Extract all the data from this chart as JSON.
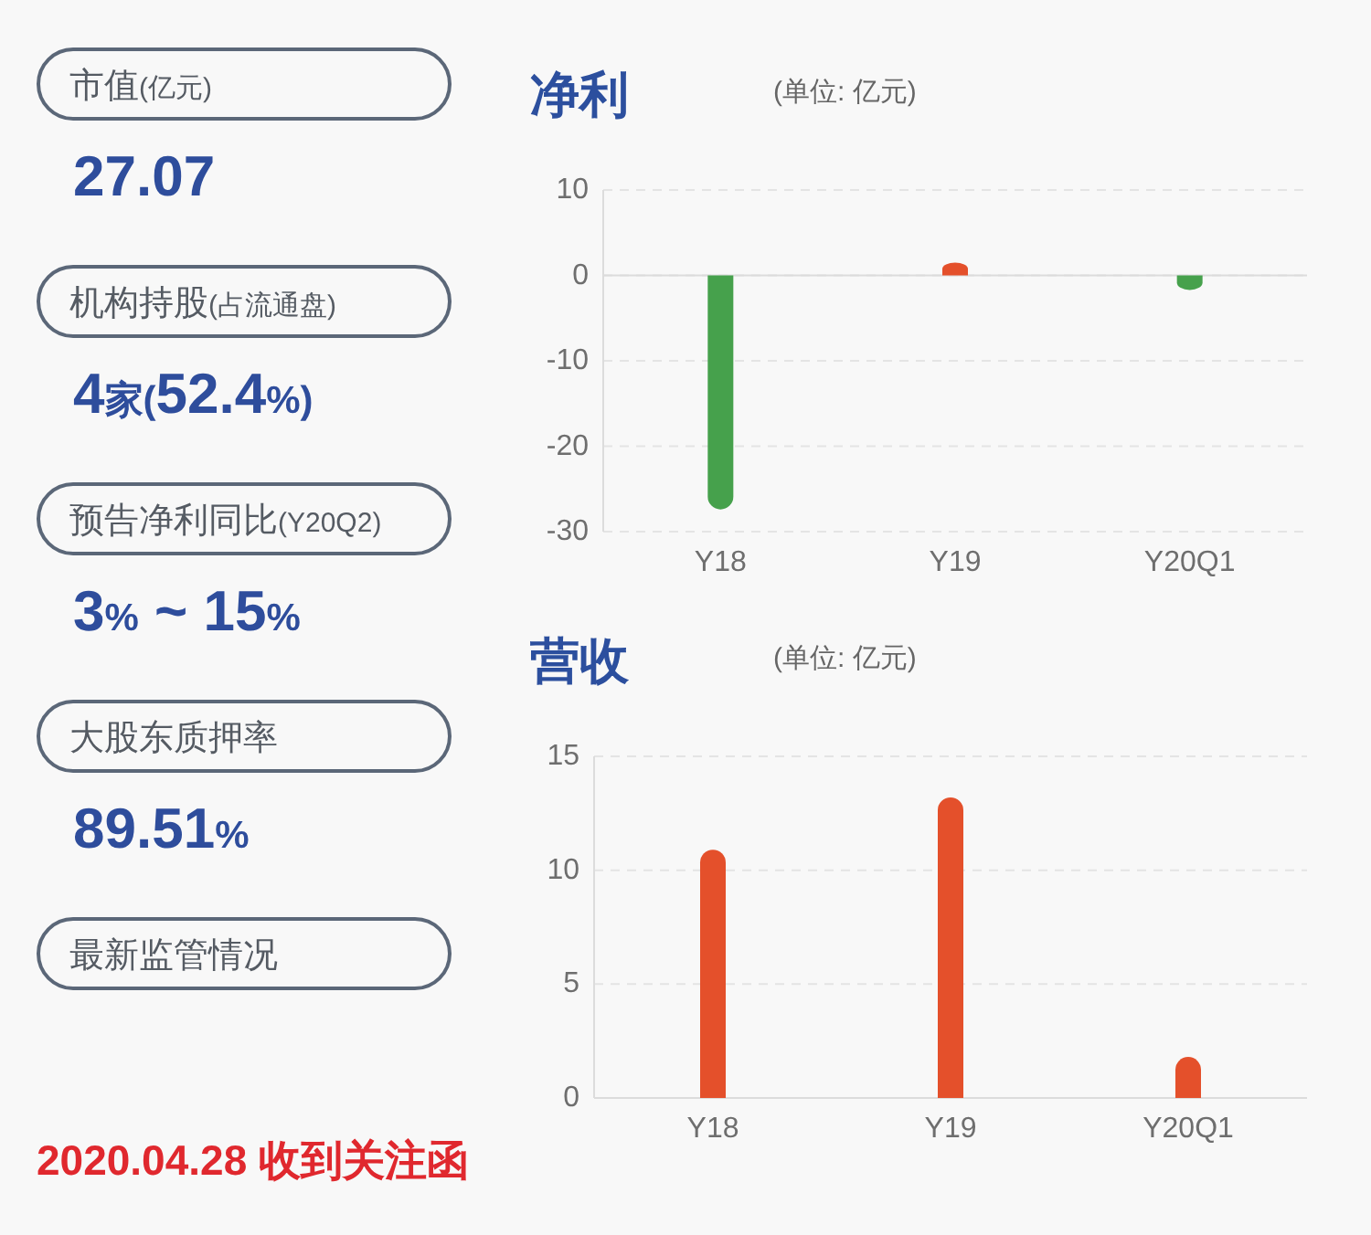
{
  "chart_data": [
    {
      "type": "other",
      "annotations": [
        "市值(亿元)",
        "27.07",
        "机构持股(占流通盘)",
        "4家(52.4%)",
        "预告净利同比(Y20Q2)",
        "3% ~ 15%",
        "大股东质押率",
        "89.51%",
        "最新监管情况",
        "2020.04.28 收到关注函"
      ]
    },
    {
      "type": "bar",
      "title": "净利",
      "subtitle": "(单位: 亿元)",
      "categories": [
        "Y18",
        "Y19",
        "Y20Q1"
      ],
      "values": [
        -27.4,
        1.5,
        -1.7
      ],
      "colors": [
        "#46a14c",
        "#e4502b",
        "#46a14c"
      ],
      "ylim": [
        -30,
        10
      ],
      "yticks": [
        10,
        0,
        -10,
        -20,
        -30
      ],
      "grid": "y"
    },
    {
      "type": "bar",
      "title": "营收",
      "subtitle": "(单位: 亿元)",
      "categories": [
        "Y18",
        "Y19",
        "Y20Q1"
      ],
      "values": [
        10.9,
        13.2,
        1.8
      ],
      "color": "#e4502b",
      "ylim": [
        0,
        15
      ],
      "yticks": [
        0,
        5,
        10,
        15
      ],
      "grid": "y"
    }
  ]
}
